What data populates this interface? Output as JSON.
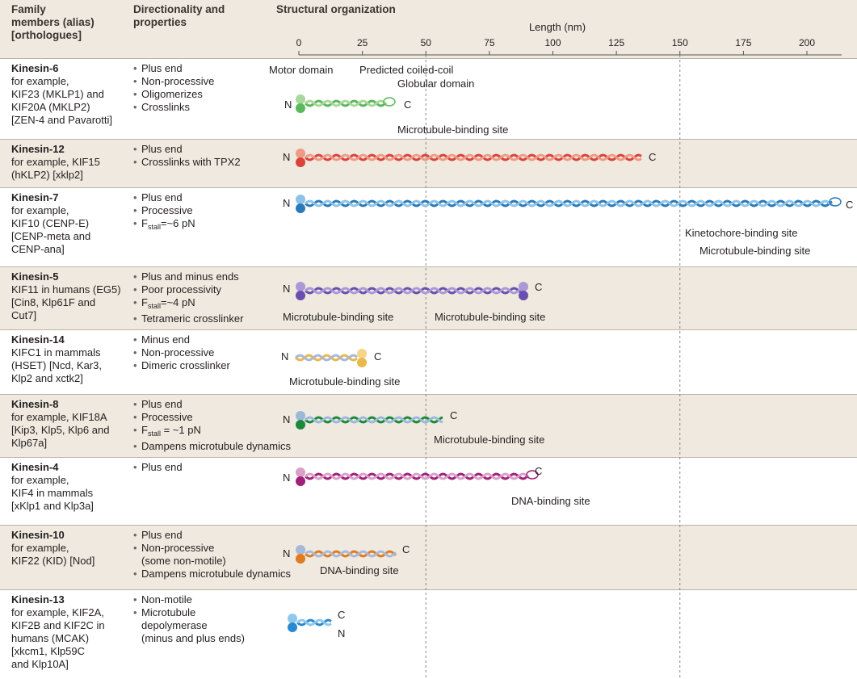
{
  "header": {
    "family": [
      "Family",
      "members (alias)",
      "[orthologues]"
    ],
    "properties": [
      "Directionality and",
      "properties"
    ],
    "structure": "Structural organization"
  },
  "axis": {
    "label": "Length (nm)",
    "ticks": [
      0,
      25,
      50,
      75,
      100,
      125,
      150,
      175,
      200
    ],
    "guide_lines": [
      50,
      150
    ]
  },
  "rows": [
    {
      "name": "Kinesin-6",
      "description": [
        "for example,",
        "KIF23 (MKLP1) and",
        "KIF20A (MKLP2)",
        "[ZEN-4 and Pavarotti]"
      ],
      "properties": [
        [
          "Plus end"
        ],
        [
          "Non-processive"
        ],
        [
          "Oligomerizes"
        ],
        [
          "Crosslinks"
        ]
      ],
      "termini": [
        "N",
        "C"
      ],
      "labels": [
        "Motor domain",
        "Predicted coiled-coil",
        "Globular domain",
        "Microtubule-binding site"
      ]
    },
    {
      "name": "Kinesin-12",
      "description": [
        "for example, KIF15",
        "(hKLP2) [xklp2]"
      ],
      "properties": [
        [
          "Plus end"
        ],
        [
          "Crosslinks with TPX2"
        ]
      ],
      "termini": [
        "N",
        "C"
      ],
      "labels": []
    },
    {
      "name": "Kinesin-7",
      "description": [
        "for example,",
        "KIF10 (CENP-E)",
        "[CENP-meta and",
        "CENP-ana]"
      ],
      "properties": [
        [
          "Plus end"
        ],
        [
          "Processive"
        ],
        {
          "f": "F",
          "sub": "stall",
          "rest": "=~6 pN"
        }
      ],
      "termini": [
        "N",
        "C"
      ],
      "labels": [
        "Kinetochore-binding site",
        "Microtubule-binding site"
      ]
    },
    {
      "name": "Kinesin-5",
      "description": [
        "KIF11 in humans (EG5)",
        "[Cin8, Klp61F and",
        "Cut7]"
      ],
      "properties": [
        [
          "Plus and minus ends"
        ],
        [
          "Poor processivity"
        ],
        {
          "f": "F",
          "sub": "stall",
          "rest": "=~4 pN"
        },
        [
          "Tetrameric crosslinker"
        ]
      ],
      "termini": [
        "N",
        "C"
      ],
      "labels": [
        "Microtubule-binding site",
        "Microtubule-binding site"
      ]
    },
    {
      "name": "Kinesin-14",
      "description": [
        "KIFC1 in mammals",
        "(HSET) [Ncd, Kar3,",
        "Klp2 and xctk2]"
      ],
      "properties": [
        [
          "Minus end"
        ],
        [
          "Non-processive"
        ],
        [
          "Dimeric crosslinker"
        ]
      ],
      "termini": [
        "N",
        "C"
      ],
      "labels": [
        "Microtubule-binding site"
      ]
    },
    {
      "name": "Kinesin-8",
      "description": [
        "for example, KIF18A",
        "[Kip3, Klp5, Klp6 and",
        "Klp67a]"
      ],
      "properties": [
        [
          "Plus end"
        ],
        [
          "Processive"
        ],
        {
          "f": "F",
          "sub": "stall",
          "rest": " = ~1 pN"
        },
        [
          "Dampens microtubule dynamics"
        ]
      ],
      "termini": [
        "N",
        "C"
      ],
      "labels": [
        "Microtubule-binding site"
      ]
    },
    {
      "name": "Kinesin-4",
      "description": [
        "for example,",
        "KIF4 in mammals",
        "[xKlp1 and Klp3a]"
      ],
      "properties": [
        [
          "Plus end"
        ]
      ],
      "termini": [
        "N",
        "C"
      ],
      "labels": [
        "DNA-binding site"
      ]
    },
    {
      "name": "Kinesin-10",
      "description": [
        "for example,",
        "KIF22 (KID) [Nod]"
      ],
      "properties": [
        [
          "Plus end"
        ],
        [
          "Non-processive",
          "(some non-motile)"
        ],
        [
          "Dampens microtubule dynamics"
        ]
      ],
      "termini": [
        "N",
        "C"
      ],
      "labels": [
        "DNA-binding site"
      ]
    },
    {
      "name": "Kinesin-13",
      "description": [
        "for example, KIF2A,",
        "KIF2B and KIF2C in",
        "humans (MCAK)",
        "[xkcm1, Klp59C",
        "and Klp10A]"
      ],
      "properties": [
        [
          "Non-motile"
        ],
        [
          "Microtubule",
          "depolymerase",
          "(minus and plus ends)"
        ]
      ],
      "termini": [
        "N",
        "C"
      ],
      "labels": []
    }
  ]
}
